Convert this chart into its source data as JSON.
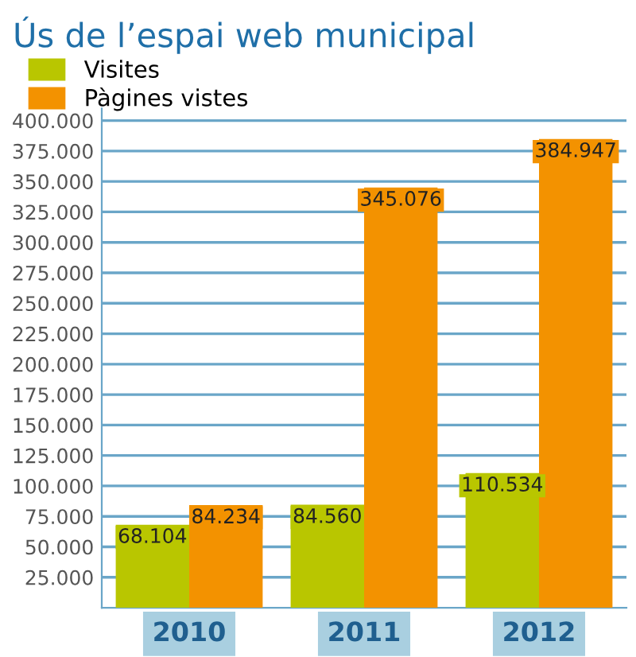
{
  "chart_data": {
    "type": "bar",
    "title": "Ús de l’espai web municipal",
    "categories": [
      "2010",
      "2011",
      "2012"
    ],
    "series": [
      {
        "name": "Visites",
        "color": "#b9c600",
        "values": [
          68104,
          84560,
          110534
        ],
        "value_labels": [
          "68.104",
          "84.560",
          "110.534"
        ]
      },
      {
        "name": "Pàgines vistes",
        "color": "#f39200",
        "values": [
          84234,
          345076,
          384947
        ],
        "value_labels": [
          "84.234",
          "345.076",
          "384.947"
        ]
      }
    ],
    "ylim": [
      0,
      410000
    ],
    "yticks": [
      {
        "value": 25000,
        "label": "25.000"
      },
      {
        "value": 50000,
        "label": "50.000"
      },
      {
        "value": 75000,
        "label": "75.000"
      },
      {
        "value": 100000,
        "label": "100.000"
      },
      {
        "value": 125000,
        "label": "125.000"
      },
      {
        "value": 150000,
        "label": "150.000"
      },
      {
        "value": 175000,
        "label": "175.000"
      },
      {
        "value": 200000,
        "label": "200.000"
      },
      {
        "value": 225000,
        "label": "225.000"
      },
      {
        "value": 250000,
        "label": "250.000"
      },
      {
        "value": 275000,
        "label": "275.000"
      },
      {
        "value": 300000,
        "label": "300.000"
      },
      {
        "value": 325000,
        "label": "325.000"
      },
      {
        "value": 350000,
        "label": "350.000"
      },
      {
        "value": 375000,
        "label": "375.000"
      },
      {
        "value": 400000,
        "label": "400.000"
      }
    ],
    "grid": "y",
    "legend": "top left"
  }
}
